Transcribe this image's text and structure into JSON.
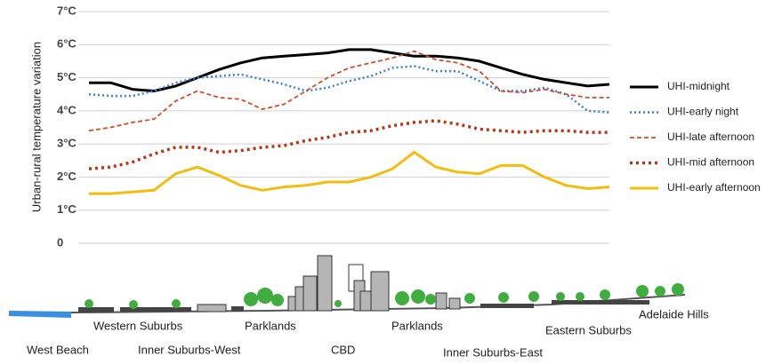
{
  "chart_data": {
    "type": "line",
    "ylabel": "Urban-rural temperature variation",
    "ylim": [
      0,
      7
    ],
    "yticks": [
      0,
      {
        "value": 1,
        "label": "1°C"
      },
      {
        "value": 2,
        "label": "2°C"
      },
      {
        "value": 3,
        "label": "3°C"
      },
      {
        "value": 4,
        "label": "4°C"
      },
      {
        "value": 5,
        "label": "5°C"
      },
      {
        "value": 6,
        "label": "6°C"
      },
      {
        "value": 7,
        "label": "7°C"
      }
    ],
    "grid": true,
    "legend": "right",
    "locations": [
      "West Beach",
      "Western Suburbs",
      "Inner Suburbs-West",
      "Parklands",
      "CBD",
      "Parklands",
      "Inner Suburbs-East",
      "Eastern Suburbs",
      "Adelaide Hills"
    ],
    "series": [
      {
        "name": "UHI-midnight",
        "color": "#000000",
        "style": "solid",
        "values": [
          4.85,
          4.85,
          4.65,
          4.6,
          4.75,
          5.0,
          5.25,
          5.45,
          5.6,
          5.65,
          5.7,
          5.75,
          5.85,
          5.85,
          5.75,
          5.65,
          5.65,
          5.6,
          5.5,
          5.3,
          5.1,
          4.95,
          4.85,
          4.75,
          4.8
        ]
      },
      {
        "name": "UHI-early night",
        "color": "#3b7fd1",
        "style": "dotted",
        "values": [
          4.5,
          4.45,
          4.45,
          4.6,
          4.85,
          5.0,
          5.05,
          5.1,
          4.95,
          4.8,
          4.6,
          4.7,
          4.9,
          5.05,
          5.3,
          5.35,
          5.2,
          5.2,
          4.9,
          4.6,
          4.6,
          4.7,
          4.5,
          4.0,
          3.95
        ]
      },
      {
        "name": "UHI-late afternoon",
        "color": "#c8502e",
        "style": "dashed",
        "values": [
          3.4,
          3.5,
          3.65,
          3.75,
          4.3,
          4.6,
          4.4,
          4.35,
          4.05,
          4.2,
          4.6,
          5.0,
          5.3,
          5.45,
          5.6,
          5.8,
          5.55,
          5.45,
          5.2,
          4.6,
          4.55,
          4.65,
          4.5,
          4.4,
          4.4
        ]
      },
      {
        "name": "UHI-mid afternoon",
        "color": "#b13a1a",
        "style": "dotted-bold",
        "values": [
          2.25,
          2.3,
          2.45,
          2.7,
          2.9,
          2.9,
          2.75,
          2.8,
          2.9,
          2.95,
          3.1,
          3.2,
          3.35,
          3.4,
          3.55,
          3.65,
          3.7,
          3.6,
          3.45,
          3.4,
          3.35,
          3.4,
          3.4,
          3.35,
          3.35
        ]
      },
      {
        "name": "UHI-early afternoon",
        "color": "#f2bd0f",
        "style": "solid",
        "values": [
          1.5,
          1.5,
          1.55,
          1.6,
          2.1,
          2.3,
          2.05,
          1.75,
          1.6,
          1.7,
          1.75,
          1.85,
          1.85,
          2.0,
          2.25,
          2.75,
          2.3,
          2.15,
          2.1,
          2.35,
          2.35,
          2.0,
          1.75,
          1.65,
          1.7
        ]
      }
    ]
  }
}
